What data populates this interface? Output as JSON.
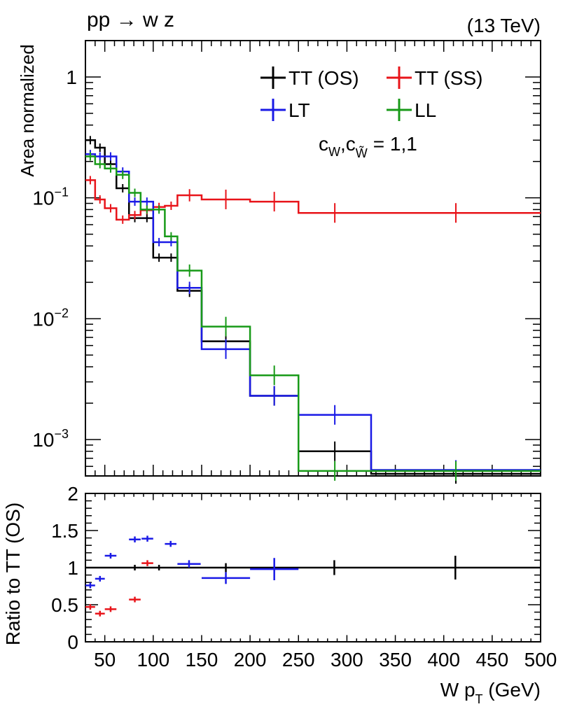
{
  "process_label": "pp → w z",
  "energy_label": "(13 TeV)",
  "coupling_label": "c_W,c_W̃ = 1,1",
  "x_axis_label": "W p_T (GeV)",
  "colors": {
    "TT (OS)": "#000000",
    "TT (SS)": "#e8141a",
    "LT": "#1a1ae6",
    "LL": "#189a18"
  },
  "chart_data": [
    {
      "type": "line",
      "style": "step histogram with error bars",
      "title": "pp → w z",
      "xlabel": "W p_T (GeV)",
      "ylabel": "Area normalized",
      "yscale": "log",
      "xlim": [
        30,
        500
      ],
      "ylim": [
        0.0005,
        2
      ],
      "y_ticks": [
        {
          "value": 0.001,
          "label": "10",
          "exp": "−3"
        },
        {
          "value": 0.01,
          "label": "10",
          "exp": "−2"
        },
        {
          "value": 0.1,
          "label": "10",
          "exp": "−1"
        },
        {
          "value": 1,
          "label": "1",
          "exp": ""
        }
      ],
      "bin_edges": [
        30,
        40,
        50,
        62,
        75,
        87,
        100,
        112,
        125,
        150,
        200,
        250,
        325,
        500
      ],
      "legend": [
        "TT (OS)",
        "TT (SS)",
        "LT",
        "LL"
      ],
      "series": [
        {
          "name": "TT (OS)",
          "values": [
            0.3,
            0.26,
            0.19,
            0.12,
            0.068,
            0.068,
            0.032,
            0.032,
            0.017,
            0.0065,
            0.0023,
            0.0008,
            0.00052
          ]
        },
        {
          "name": "TT (SS)",
          "values": [
            0.14,
            0.097,
            0.082,
            0.066,
            0.072,
            0.079,
            0.084,
            0.086,
            0.105,
            0.097,
            0.093,
            0.075,
            0.075
          ]
        },
        {
          "name": "LT",
          "values": [
            0.23,
            0.22,
            0.22,
            0.165,
            0.093,
            0.093,
            0.043,
            0.043,
            0.018,
            0.0056,
            0.0023,
            0.0016,
            0.00056
          ]
        },
        {
          "name": "LL",
          "values": [
            0.22,
            0.19,
            0.175,
            0.155,
            0.11,
            0.08,
            0.08,
            0.048,
            0.025,
            0.0086,
            0.0034,
            0.00055,
            0.00055
          ]
        }
      ]
    },
    {
      "type": "scatter",
      "style": "points with error bars",
      "xlabel": "W p_T (GeV)",
      "ylabel": "Ratio to TT (OS)",
      "xlim": [
        30,
        500
      ],
      "ylim": [
        0,
        2
      ],
      "x_ticks": [
        50,
        100,
        150,
        200,
        250,
        300,
        350,
        400,
        450,
        500
      ],
      "y_ticks": [
        {
          "value": 0,
          "label": "0"
        },
        {
          "value": 0.5,
          "label": "0.5"
        },
        {
          "value": 1,
          "label": "1"
        },
        {
          "value": 1.5,
          "label": "1.5"
        },
        {
          "value": 2,
          "label": "2"
        }
      ],
      "series": [
        {
          "name": "TT (SS)",
          "points": [
            {
              "x": 35,
              "y": 0.47,
              "xerr": 5,
              "yerr": 0.02
            },
            {
              "x": 45,
              "y": 0.38,
              "xerr": 5,
              "yerr": 0.02
            },
            {
              "x": 56,
              "y": 0.44,
              "xerr": 6,
              "yerr": 0.02
            },
            {
              "x": 81,
              "y": 0.57,
              "xerr": 6,
              "yerr": 0.02
            },
            {
              "x": 94,
              "y": 1.06,
              "xerr": 6,
              "yerr": 0.04
            }
          ]
        },
        {
          "name": "LT",
          "points": [
            {
              "x": 35,
              "y": 0.76,
              "xerr": 5,
              "yerr": 0.03
            },
            {
              "x": 45,
              "y": 0.85,
              "xerr": 5,
              "yerr": 0.03
            },
            {
              "x": 56,
              "y": 1.16,
              "xerr": 6,
              "yerr": 0.03
            },
            {
              "x": 81,
              "y": 1.38,
              "xerr": 6,
              "yerr": 0.04
            },
            {
              "x": 94,
              "y": 1.39,
              "xerr": 6,
              "yerr": 0.04
            },
            {
              "x": 118,
              "y": 1.32,
              "xerr": 6,
              "yerr": 0.04
            },
            {
              "x": 137,
              "y": 1.05,
              "xerr": 12,
              "yerr": 0.05
            },
            {
              "x": 175,
              "y": 0.86,
              "xerr": 25,
              "yerr": 0.08
            },
            {
              "x": 225,
              "y": 0.98,
              "xerr": 25,
              "yerr": 0.15
            }
          ]
        },
        {
          "name": "TT (OS)",
          "points": [
            {
              "x": 81,
              "y": 1.0,
              "xerr": 0,
              "yerr": 0.01
            },
            {
              "x": 106,
              "y": 1.0,
              "xerr": 0,
              "yerr": 0.01
            },
            {
              "x": 175,
              "y": 1.0,
              "xerr": 0,
              "yerr": 0.06
            },
            {
              "x": 287,
              "y": 1.0,
              "xerr": 0,
              "yerr": 0.1
            },
            {
              "x": 412,
              "y": 1.0,
              "xerr": 0,
              "yerr": 0.16
            }
          ]
        }
      ],
      "reference_line": 1
    }
  ]
}
